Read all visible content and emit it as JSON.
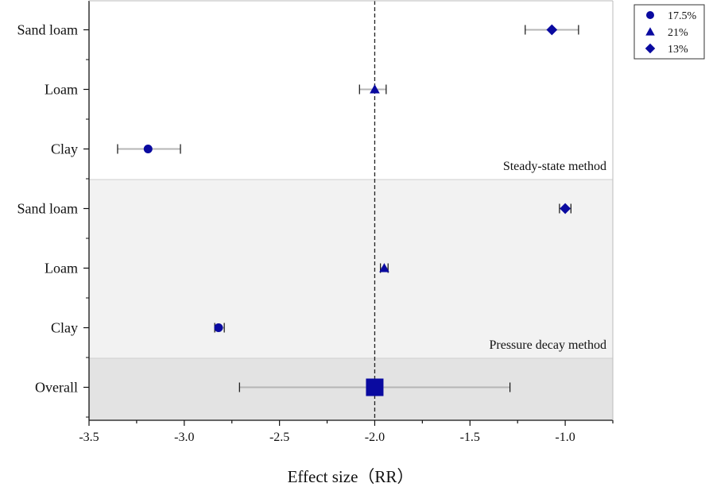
{
  "chart_data": {
    "type": "forest",
    "xlabel": "Effect size（RR）",
    "xlim": [
      -3.5,
      -0.75
    ],
    "xticks": [
      -3.5,
      -3.0,
      -2.5,
      -2.0,
      -1.5,
      -1.0
    ],
    "xtick_labels": [
      "-3.5",
      "-3.0",
      "-2.5",
      "-2.0",
      "-1.5",
      "-1.0"
    ],
    "reference_line": -2.0,
    "colors": {
      "marker": "#0a0aa0",
      "ci": "#b5b5b5",
      "panel_light": "#f2f2f2",
      "panel_dark": "#e3e3e3"
    },
    "legend": [
      {
        "label": "17.5%",
        "marker": "circle"
      },
      {
        "label": "21%",
        "marker": "triangle"
      },
      {
        "label": "13%",
        "marker": "diamond"
      }
    ],
    "groups": [
      {
        "label": "Steady-state method",
        "shade": "none",
        "rows": [
          0,
          1,
          2
        ]
      },
      {
        "label": "Pressure decay method",
        "shade": "light",
        "rows": [
          3,
          4,
          5
        ]
      },
      {
        "label": "",
        "shade": "dark",
        "rows": [
          6
        ]
      }
    ],
    "rows": [
      {
        "label": "Sand loam",
        "estimate": -1.07,
        "lower": -1.21,
        "upper": -0.93,
        "marker": "diamond"
      },
      {
        "label": "Loam",
        "estimate": -2.0,
        "lower": -2.08,
        "upper": -1.94,
        "marker": "triangle"
      },
      {
        "label": "Clay",
        "estimate": -3.19,
        "lower": -3.35,
        "upper": -3.02,
        "marker": "circle"
      },
      {
        "label": "Sand loam",
        "estimate": -1.0,
        "lower": -1.03,
        "upper": -0.97,
        "marker": "diamond"
      },
      {
        "label": "Loam",
        "estimate": -1.95,
        "lower": -1.97,
        "upper": -1.93,
        "marker": "triangle"
      },
      {
        "label": "Clay",
        "estimate": -2.82,
        "lower": -2.84,
        "upper": -2.79,
        "marker": "circle"
      },
      {
        "label": "Overall",
        "estimate": -2.0,
        "lower": -2.71,
        "upper": -1.29,
        "marker": "square"
      }
    ]
  }
}
